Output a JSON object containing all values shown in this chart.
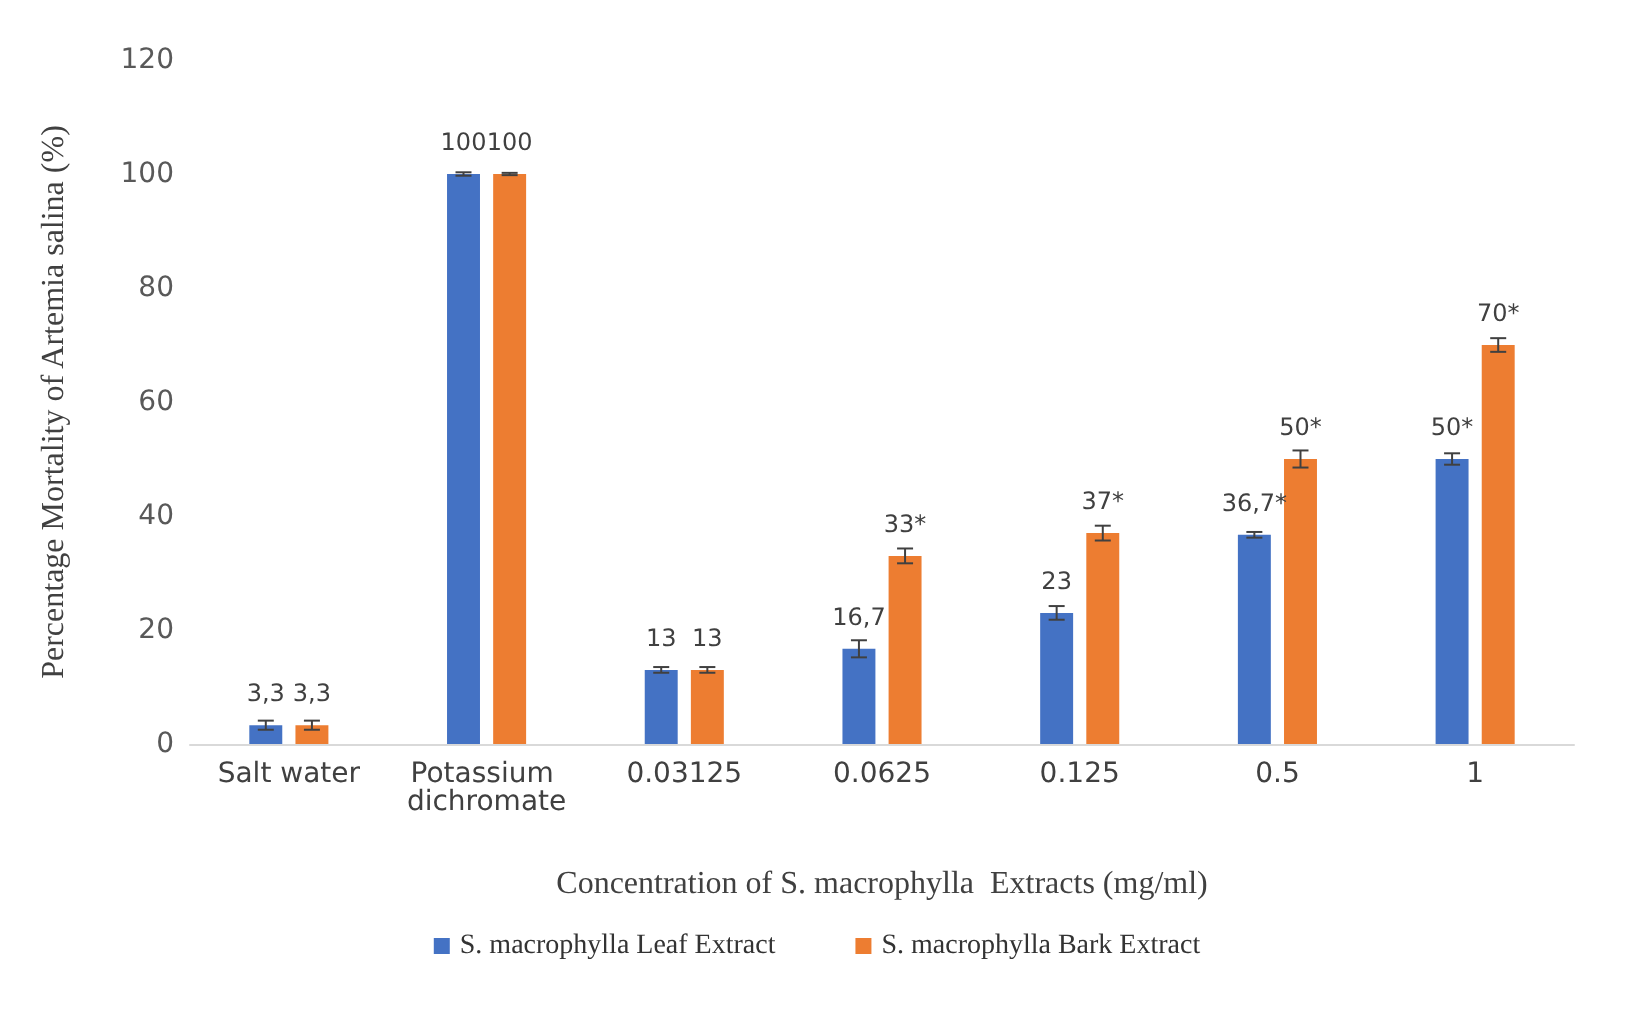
{
  "chart_data": {
    "type": "bar",
    "xlabel": "Concentration of S. macrophylla  Extracts (mg/ml)",
    "ylabel": "Percentage Mortality of Artemia salina (%)",
    "categories": [
      "Salt water",
      "Potassium dichromate",
      "0.03125",
      "0.0625",
      "0.125",
      "0.5",
      "1"
    ],
    "series": [
      {
        "name": "S. macrophylla Leaf Extract",
        "color": "#4472c4",
        "values": [
          3.3,
          100,
          13,
          16.7,
          23,
          36.7,
          50
        ],
        "errors": [
          0.8,
          0.3,
          0.5,
          1.5,
          1.2,
          0.5,
          1
        ],
        "value_labels": [
          "3,3",
          "100",
          "13",
          "16,7",
          "23",
          "36,7*",
          "50*"
        ]
      },
      {
        "name": "S. macrophylla Bark Extract",
        "color": "#ed7d31",
        "values": [
          3.3,
          100,
          13,
          33,
          37,
          50,
          70
        ],
        "errors": [
          0.8,
          0.2,
          0.5,
          1.3,
          1.3,
          1.5,
          1.2
        ],
        "value_labels": [
          "3,3",
          "100",
          "13",
          "33*",
          "37*",
          "50*",
          "70*"
        ]
      }
    ],
    "ylim": [
      0,
      120
    ],
    "yticks": [
      0,
      20,
      40,
      60,
      80,
      100,
      120
    ],
    "grid": false,
    "legend": "bottom"
  }
}
